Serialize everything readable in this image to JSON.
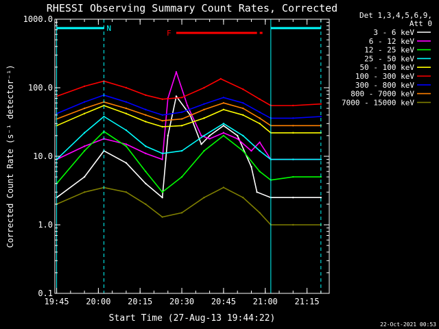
{
  "chart_data": {
    "type": "line",
    "title": "RHESSI Observing Summary Count Rates, Corrected",
    "xlabel": "Start Time (27-Aug-13 19:44:22)",
    "ylabel": "Corrected Count Rate (s⁻¹ detector⁻¹)",
    "y_scale": "log",
    "ylim": [
      0.1,
      1000
    ],
    "xlim": [
      "19:44:22",
      "21:23:00"
    ],
    "x_ticks": [
      "19:45",
      "20:00",
      "20:15",
      "20:30",
      "20:45",
      "21:00",
      "21:15"
    ],
    "y_ticks": [
      "0.1",
      "1.0",
      "10.0",
      "100.0",
      "1000.0"
    ],
    "grid": false,
    "legend_header": [
      "Det 1,3,4,5,6,9,",
      "Att 0"
    ],
    "legend_position": "right",
    "series": [
      {
        "name": "3 - 6 keV",
        "color": "#ffffff",
        "x": [
          "19:45",
          "19:55",
          "20:02",
          "20:10",
          "20:17",
          "20:23",
          "20:25",
          "20:28",
          "20:33",
          "20:37",
          "20:40",
          "20:45",
          "20:50",
          "20:55",
          "20:57",
          "21:02",
          "21:10",
          "21:20"
        ],
        "values": [
          2.5,
          5,
          12,
          8,
          4,
          2.5,
          20,
          75,
          40,
          15,
          20,
          28,
          20,
          7,
          3,
          2.5,
          2.5,
          2.5
        ]
      },
      {
        "name": "6 - 12 keV",
        "color": "#ff00ff",
        "x": [
          "19:45",
          "19:55",
          "20:02",
          "20:10",
          "20:17",
          "20:23",
          "20:25",
          "20:28",
          "20:32",
          "20:37",
          "20:40",
          "20:45",
          "20:50",
          "20:55",
          "20:58",
          "21:02",
          "21:10",
          "21:20"
        ],
        "values": [
          9,
          14,
          18,
          15,
          11,
          9,
          70,
          170,
          55,
          20,
          18,
          22,
          18,
          12,
          16,
          9,
          9,
          9
        ]
      },
      {
        "name": "12 - 25 keV",
        "color": "#00ff00",
        "x": [
          "19:45",
          "19:55",
          "20:02",
          "20:10",
          "20:17",
          "20:23",
          "20:30",
          "20:38",
          "20:45",
          "20:52",
          "20:58",
          "21:02",
          "21:10",
          "21:20"
        ],
        "values": [
          4,
          12,
          23,
          14,
          6,
          3,
          5,
          12,
          20,
          12,
          6,
          4.5,
          5,
          5
        ]
      },
      {
        "name": "25 - 50 keV",
        "color": "#00ffff",
        "x": [
          "19:45",
          "19:55",
          "20:02",
          "20:10",
          "20:17",
          "20:23",
          "20:30",
          "20:38",
          "20:45",
          "20:52",
          "20:58",
          "21:02",
          "21:10",
          "21:20"
        ],
        "values": [
          9,
          22,
          38,
          24,
          14,
          11,
          12,
          20,
          30,
          20,
          12,
          9,
          9,
          9
        ]
      },
      {
        "name": "50 - 100 keV",
        "color": "#ffff00",
        "x": [
          "19:45",
          "19:55",
          "20:02",
          "20:10",
          "20:17",
          "20:23",
          "20:30",
          "20:38",
          "20:45",
          "20:52",
          "20:58",
          "21:02",
          "21:10",
          "21:20"
        ],
        "values": [
          28,
          42,
          55,
          42,
          32,
          27,
          28,
          36,
          48,
          40,
          30,
          22,
          22,
          22
        ]
      },
      {
        "name": "100 - 300 keV",
        "color": "#ff0000",
        "x": [
          "19:45",
          "19:55",
          "20:02",
          "20:10",
          "20:17",
          "20:23",
          "20:30",
          "20:38",
          "20:44",
          "20:52",
          "20:58",
          "21:02",
          "21:10",
          "21:20"
        ],
        "values": [
          75,
          105,
          125,
          100,
          78,
          68,
          72,
          100,
          135,
          95,
          68,
          55,
          55,
          58
        ]
      },
      {
        "name": "300 - 800 keV",
        "color": "#0000ff",
        "x": [
          "19:45",
          "19:55",
          "20:02",
          "20:10",
          "20:17",
          "20:23",
          "20:30",
          "20:38",
          "20:45",
          "20:52",
          "20:58",
          "21:02",
          "21:10",
          "21:20"
        ],
        "values": [
          42,
          62,
          78,
          62,
          48,
          40,
          44,
          58,
          72,
          60,
          44,
          36,
          36,
          38
        ]
      },
      {
        "name": "800 - 7000 keV",
        "color": "#ff8000",
        "x": [
          "19:45",
          "19:55",
          "20:02",
          "20:10",
          "20:17",
          "20:23",
          "20:30",
          "20:38",
          "20:45",
          "20:52",
          "20:58",
          "21:02",
          "21:10",
          "21:20"
        ],
        "values": [
          35,
          50,
          62,
          50,
          40,
          33,
          35,
          48,
          60,
          50,
          36,
          28,
          28,
          28
        ]
      },
      {
        "name": "7000 - 15000 keV",
        "color": "#808000",
        "x": [
          "19:45",
          "19:55",
          "20:02",
          "20:10",
          "20:17",
          "20:23",
          "20:30",
          "20:38",
          "20:45",
          "20:52",
          "20:58",
          "21:02",
          "21:10",
          "21:20"
        ],
        "values": [
          2,
          3,
          3.5,
          3,
          2,
          1.3,
          1.5,
          2.5,
          3.5,
          2.5,
          1.5,
          1,
          1,
          1
        ]
      }
    ],
    "vlines": {
      "color": "#00ffff",
      "x": [
        "19:45",
        "20:02",
        "21:02",
        "21:20"
      ]
    },
    "night_bars": {
      "color": "#00ffff",
      "spans": [
        [
          "19:45",
          "20:02"
        ],
        [
          "21:02",
          "21:20"
        ]
      ],
      "labels": [
        "N"
      ]
    },
    "flare_bar": {
      "label": "F",
      "color": "#ff0000",
      "span": [
        "20:28",
        "20:59"
      ]
    },
    "footer_date": "22-Oct-2021 00:53"
  }
}
